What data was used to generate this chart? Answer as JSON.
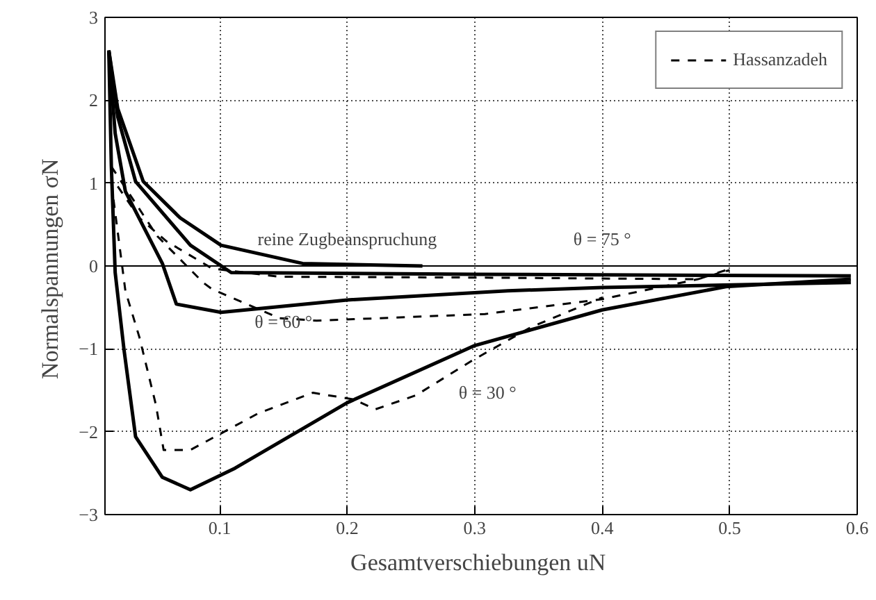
{
  "chart_data": {
    "type": "line",
    "xlabel": "Gesamtverschiebungen  uN",
    "ylabel": "Normalspannungen  σN",
    "xlim": [
      0.01,
      0.6
    ],
    "ylim": [
      -3,
      3
    ],
    "xticks": [
      0.1,
      0.2,
      0.3,
      0.4,
      0.5,
      0.6
    ],
    "yticks": [
      -3,
      -2,
      -1,
      0,
      1,
      2,
      3
    ],
    "grid": true,
    "legend": "top right",
    "marker": "none",
    "ref_lines": [
      {
        "axis": "y",
        "value": 0,
        "color": "#000000",
        "line_style": "solid"
      }
    ],
    "annotations": [
      "reine Zugbeanspruchung",
      "θ = 75 °",
      "θ = 60 °",
      "θ = 30 °"
    ],
    "series": [
      {
        "name": "Hassanzadeh",
        "color": "#000000",
        "line_style": "dashed",
        "x": [
          0.02,
          0.037,
          0.058,
          0.094,
          0.147,
          0.3,
          0.475,
          0.497
        ],
        "values": [
          0.96,
          0.58,
          0.3,
          -0.03,
          -0.13,
          -0.14,
          -0.16,
          -0.05
        ]
      },
      {
        "color": "#000000",
        "line_style": "dashed",
        "x": [
          0.015,
          0.051,
          0.087,
          0.094,
          0.147,
          0.176,
          0.308,
          0.4,
          0.475,
          0.5
        ],
        "values": [
          1.2,
          0.36,
          -0.2,
          -0.28,
          -0.63,
          -0.66,
          -0.58,
          -0.4,
          -0.16,
          -0.05
        ]
      },
      {
        "color": "#000000",
        "line_style": "dashed",
        "x": [
          0.015,
          0.026,
          0.037,
          0.05,
          0.056,
          0.077,
          0.13,
          0.173,
          0.205,
          0.222,
          0.254,
          0.297,
          0.344,
          0.4
        ],
        "values": [
          1.0,
          -0.3,
          -0.86,
          -1.68,
          -2.22,
          -2.22,
          -1.78,
          -1.53,
          -1.61,
          -1.73,
          -1.56,
          -1.15,
          -0.74,
          -0.38
        ]
      },
      {
        "color": "#000000",
        "line_style": "solid",
        "x": [
          0.013,
          0.02,
          0.04,
          0.069,
          0.101,
          0.165,
          0.259
        ],
        "values": [
          2.6,
          1.9,
          1.02,
          0.58,
          0.25,
          0.03,
          0.0
        ]
      },
      {
        "color": "#000000",
        "line_style": "solid",
        "x": [
          0.013,
          0.02,
          0.034,
          0.077,
          0.109,
          0.3,
          0.595
        ],
        "values": [
          2.6,
          1.8,
          1.02,
          0.25,
          -0.08,
          -0.1,
          -0.12
        ]
      },
      {
        "color": "#000000",
        "line_style": "solid",
        "x": [
          0.013,
          0.018,
          0.026,
          0.055,
          0.066,
          0.101,
          0.2,
          0.326,
          0.4,
          0.595
        ],
        "values": [
          2.6,
          1.6,
          0.9,
          0.03,
          -0.46,
          -0.56,
          -0.41,
          -0.3,
          -0.26,
          -0.2
        ]
      },
      {
        "color": "#000000",
        "line_style": "solid",
        "x": [
          0.013,
          0.015,
          0.018,
          0.025,
          0.034,
          0.055,
          0.077,
          0.112,
          0.2,
          0.3,
          0.4,
          0.497,
          0.595
        ],
        "values": [
          2.6,
          1.2,
          -0.08,
          -1.02,
          -2.06,
          -2.55,
          -2.7,
          -2.44,
          -1.65,
          -0.96,
          -0.53,
          -0.25,
          -0.16
        ]
      }
    ]
  }
}
